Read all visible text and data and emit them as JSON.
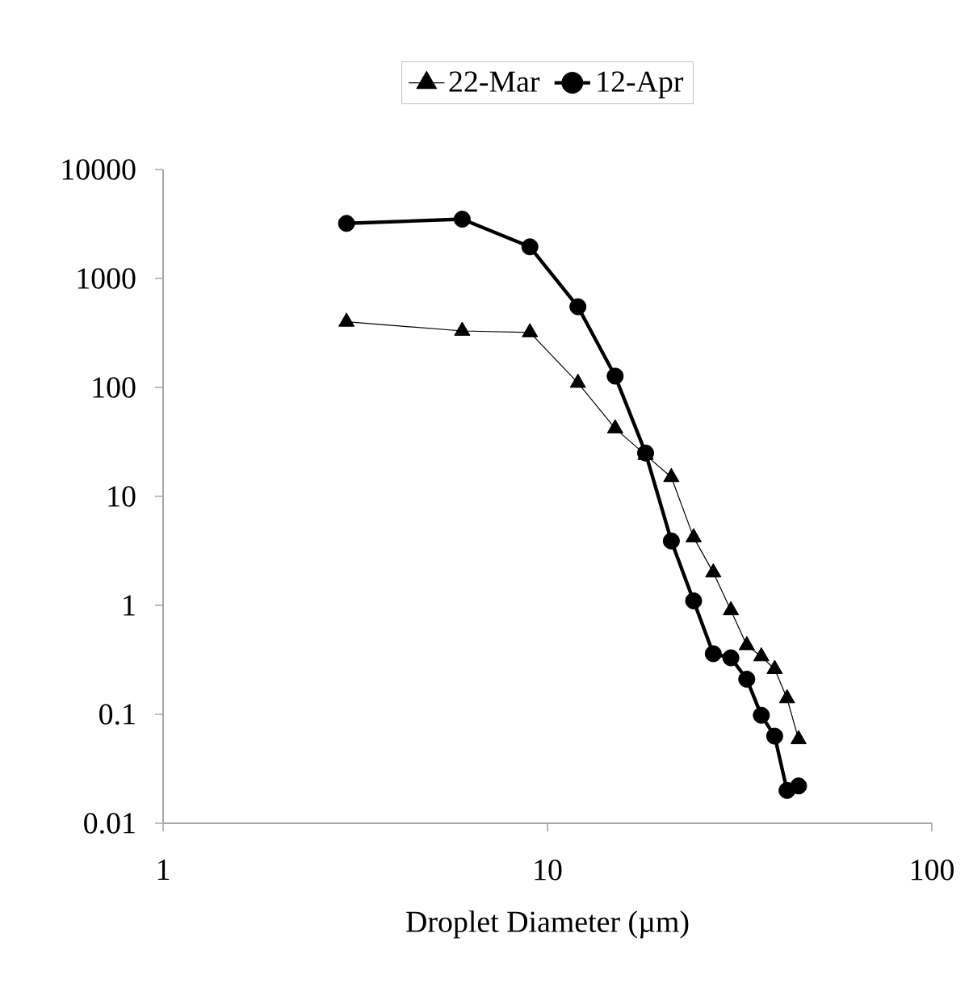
{
  "chart_data": {
    "type": "line",
    "xlabel": "Droplet Diameter (µm)",
    "log": "xy",
    "xlim": [
      1,
      100
    ],
    "xticks": [
      1,
      10,
      100
    ],
    "ylim": [
      0.01,
      10000
    ],
    "yticks": [
      0.01,
      0.1,
      1,
      10,
      100,
      1000,
      10000
    ],
    "legend": "top",
    "grid": false,
    "x": [
      3,
      6,
      9,
      12,
      15,
      18,
      21,
      24,
      27,
      30,
      33,
      36,
      39,
      42,
      45
    ],
    "series": [
      {
        "name": "22-Mar",
        "color": "#000000",
        "marker": "triangle",
        "values": [
          400,
          330,
          320,
          110,
          42,
          24,
          15,
          4.2,
          2,
          0.9,
          0.43,
          0.34,
          0.26,
          0.14,
          0.059
        ]
      },
      {
        "name": "12-Apr",
        "color": "#000000",
        "marker": "circle",
        "values": [
          3200,
          3500,
          1950,
          550,
          127,
          25,
          3.9,
          1.1,
          0.36,
          0.33,
          0.21,
          0.098,
          0.063,
          0.02,
          0.022
        ]
      }
    ]
  }
}
